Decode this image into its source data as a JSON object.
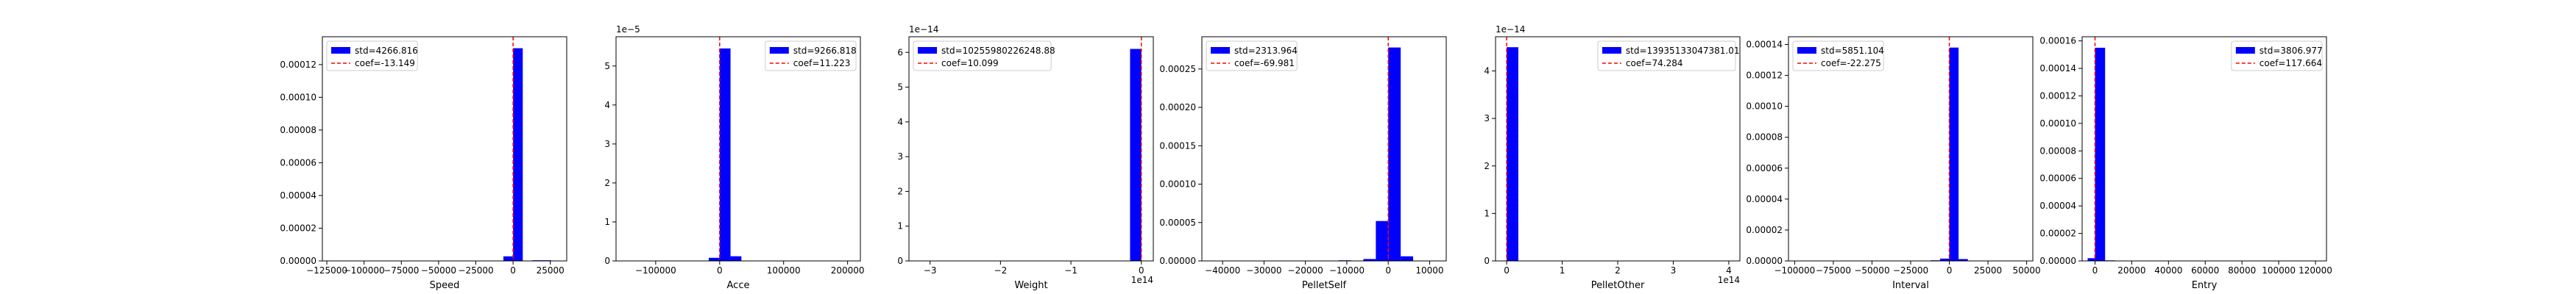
{
  "colors": {
    "bar": "#0000ff",
    "coef_line": "#ff0000",
    "axis": "#000000",
    "legend_border": "#cccccc"
  },
  "chart_data": [
    {
      "type": "bar",
      "xlabel": "Speed",
      "x_ticks": [
        -125000,
        -100000,
        -75000,
        -50000,
        -25000,
        0,
        25000
      ],
      "x_tick_labels": [
        "−125000",
        "−100000",
        "−75000",
        "−50000",
        "−25000",
        "0",
        "25000"
      ],
      "x_exponent": "",
      "xlim": [
        -128000,
        36000
      ],
      "y_ticks": [
        0,
        2e-05,
        4e-05,
        6e-05,
        8e-05,
        0.0001,
        0.00012
      ],
      "y_tick_labels": [
        "0.00000",
        "0.00002",
        "0.00004",
        "0.00006",
        "0.00008",
        "0.00010",
        "0.00012"
      ],
      "y_exponent": "",
      "ylim": [
        0,
        0.000137
      ],
      "bins": [
        {
          "x0": -6500,
          "x1": 0,
          "y": 2.8e-06
        },
        {
          "x0": 0,
          "x1": 6500,
          "y": 0.00013
        },
        {
          "x0": 13000,
          "x1": 25500,
          "y": 4e-07
        }
      ],
      "coef_x": 0,
      "legend": {
        "std": "std=4266.816",
        "coef": "coef=-13.149",
        "position": "top-left"
      }
    },
    {
      "type": "bar",
      "xlabel": "Acce",
      "x_ticks": [
        -100000,
        0,
        100000,
        200000
      ],
      "x_tick_labels": [
        "−100000",
        "0",
        "100000",
        "200000"
      ],
      "x_exponent": "",
      "xlim": [
        -162000,
        220000
      ],
      "y_ticks": [
        0,
        1,
        2,
        3,
        4,
        5
      ],
      "y_tick_labels": [
        "0",
        "1",
        "2",
        "3",
        "4",
        "5"
      ],
      "y_exponent": "1e−5",
      "ylim": [
        0,
        5.75
      ],
      "bins": [
        {
          "x0": -17000,
          "x1": 0,
          "y": 0.08
        },
        {
          "x0": 0,
          "x1": 17000,
          "y": 5.45
        },
        {
          "x0": 17000,
          "x1": 34000,
          "y": 0.12
        }
      ],
      "coef_x": 0,
      "legend": {
        "std": "std=9266.818",
        "coef": "coef=11.223",
        "position": "top-right"
      }
    },
    {
      "type": "bar",
      "xlabel": "Weight",
      "x_ticks": [
        -3,
        -2,
        -1,
        0
      ],
      "x_tick_labels": [
        "−3",
        "−2",
        "−1",
        "0"
      ],
      "x_exponent": "1e14",
      "xlim": [
        -3.3,
        0.17
      ],
      "y_ticks": [
        0,
        1,
        2,
        3,
        4,
        5,
        6
      ],
      "y_tick_labels": [
        "0",
        "1",
        "2",
        "3",
        "4",
        "5",
        "6"
      ],
      "y_exponent": "1e−14",
      "ylim": [
        0,
        6.45
      ],
      "bins": [
        {
          "x0": -0.16,
          "x1": 0,
          "y": 6.1
        }
      ],
      "coef_x": 0,
      "legend": {
        "std": "std=10255980226248.88",
        "coef": "coef=10.099",
        "position": "top-left"
      }
    },
    {
      "type": "bar",
      "xlabel": "PelletSelf",
      "x_ticks": [
        -40000,
        -30000,
        -20000,
        -10000,
        0,
        10000
      ],
      "x_tick_labels": [
        "−40000",
        "−30000",
        "−20000",
        "−10000",
        "0",
        "10000"
      ],
      "x_exponent": "",
      "xlim": [
        -45000,
        14000
      ],
      "y_ticks": [
        0,
        5e-05,
        0.0001,
        0.00015,
        0.0002,
        0.00025
      ],
      "y_tick_labels": [
        "0.00000",
        "0.00005",
        "0.00010",
        "0.00015",
        "0.00020",
        "0.00025"
      ],
      "y_exponent": "",
      "ylim": [
        0,
        0.000292
      ],
      "bins": [
        {
          "x0": -12000,
          "x1": -9000,
          "y": 8e-07
        },
        {
          "x0": -6000,
          "x1": -3000,
          "y": 2.5e-06
        },
        {
          "x0": -3000,
          "x1": 0,
          "y": 5.2e-05
        },
        {
          "x0": 0,
          "x1": 3000,
          "y": 0.000278
        },
        {
          "x0": 3000,
          "x1": 6000,
          "y": 6e-06
        }
      ],
      "coef_x": 0,
      "legend": {
        "std": "std=2313.964",
        "coef": "coef=-69.981",
        "position": "top-left"
      }
    },
    {
      "type": "bar",
      "xlabel": "PelletOther",
      "x_ticks": [
        0,
        1,
        2,
        3,
        4
      ],
      "x_tick_labels": [
        "0",
        "1",
        "2",
        "3",
        "4"
      ],
      "x_exponent": "1e14",
      "xlim": [
        -0.2,
        4.2
      ],
      "y_ticks": [
        0,
        1,
        2,
        3,
        4
      ],
      "y_tick_labels": [
        "0",
        "1",
        "2",
        "3",
        "4"
      ],
      "y_exponent": "1e−14",
      "ylim": [
        0,
        4.72
      ],
      "bins": [
        {
          "x0": 0,
          "x1": 0.21,
          "y": 4.5
        }
      ],
      "coef_x": 0,
      "legend": {
        "std": "std=13935133047381.01",
        "coef": "coef=74.284",
        "position": "top-right"
      }
    },
    {
      "type": "bar",
      "xlabel": "Interval",
      "x_ticks": [
        -100000,
        -75000,
        -50000,
        -25000,
        0,
        25000,
        50000
      ],
      "x_tick_labels": [
        "−100000",
        "−75000",
        "−50000",
        "−25000",
        "0",
        "25000",
        "50000"
      ],
      "x_exponent": "",
      "xlim": [
        -104000,
        54000
      ],
      "y_ticks": [
        0,
        2e-05,
        4e-05,
        6e-05,
        8e-05,
        0.0001,
        0.00012,
        0.00014
      ],
      "y_tick_labels": [
        "0.00000",
        "0.00002",
        "0.00004",
        "0.00006",
        "0.00008",
        "0.00010",
        "0.00012",
        "0.00014"
      ],
      "y_exponent": "",
      "ylim": [
        0,
        0.000145
      ],
      "bins": [
        {
          "x0": -100000,
          "x1": -95000,
          "y": 2e-07
        },
        {
          "x0": -12000,
          "x1": -6000,
          "y": 4e-07
        },
        {
          "x0": -6000,
          "x1": 0,
          "y": 1.5e-06
        },
        {
          "x0": 0,
          "x1": 6000,
          "y": 0.000138
        },
        {
          "x0": 6000,
          "x1": 12000,
          "y": 1.2e-06
        },
        {
          "x0": 24000,
          "x1": 30000,
          "y": 2e-07
        }
      ],
      "coef_x": 0,
      "legend": {
        "std": "std=5851.104",
        "coef": "coef=-22.275",
        "position": "top-left"
      }
    },
    {
      "type": "bar",
      "xlabel": "Entry",
      "x_ticks": [
        0,
        20000,
        40000,
        60000,
        80000,
        100000,
        120000
      ],
      "x_tick_labels": [
        "0",
        "20000",
        "40000",
        "60000",
        "80000",
        "100000",
        "120000"
      ],
      "x_exponent": "",
      "xlim": [
        -7000,
        126000
      ],
      "y_ticks": [
        0,
        2e-05,
        4e-05,
        6e-05,
        8e-05,
        0.0001,
        0.00012,
        0.00014,
        0.00016
      ],
      "y_tick_labels": [
        "0.00000",
        "0.00002",
        "0.00004",
        "0.00006",
        "0.00008",
        "0.00010",
        "0.00012",
        "0.00014",
        "0.00016"
      ],
      "y_exponent": "",
      "ylim": [
        0,
        0.000163
      ],
      "bins": [
        {
          "x0": -4000,
          "x1": 0,
          "y": 2e-06
        },
        {
          "x0": 0,
          "x1": 5500,
          "y": 0.000155
        },
        {
          "x0": 5500,
          "x1": 11000,
          "y": 4e-07
        }
      ],
      "coef_x": 0,
      "legend": {
        "std": "std=3806.977",
        "coef": "coef=117.664",
        "position": "top-right"
      }
    }
  ]
}
